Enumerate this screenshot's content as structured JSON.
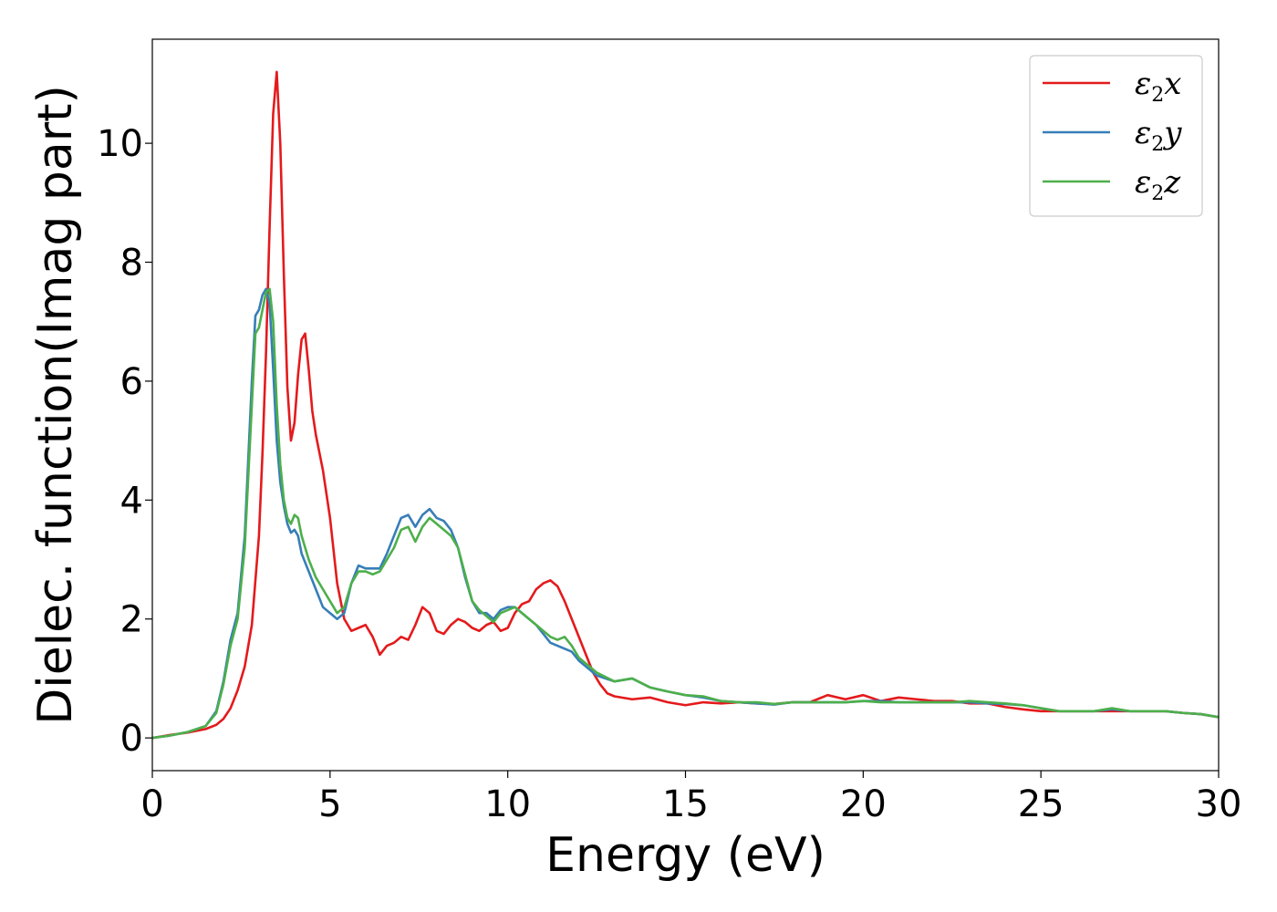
{
  "chart_data": {
    "type": "line",
    "title": "",
    "xlabel": "Energy (eV)",
    "ylabel": "Dielec. function(Imag part)",
    "xlim": [
      0,
      30
    ],
    "ylim": [
      -0.55,
      11.75
    ],
    "xticks": [
      0,
      5,
      10,
      15,
      20,
      25,
      30
    ],
    "yticks": [
      0,
      2,
      4,
      6,
      8,
      10
    ],
    "grid": false,
    "legend_position": "top-right",
    "series": [
      {
        "name": "ε₂x",
        "legend_main": "ε",
        "legend_sub": "2",
        "legend_tail": "x",
        "color": "#e41a1c",
        "x": [
          0,
          0.5,
          1.0,
          1.5,
          1.8,
          2.0,
          2.2,
          2.4,
          2.6,
          2.8,
          3.0,
          3.1,
          3.2,
          3.3,
          3.4,
          3.5,
          3.6,
          3.7,
          3.8,
          3.9,
          4.0,
          4.1,
          4.2,
          4.3,
          4.4,
          4.5,
          4.6,
          4.8,
          5.0,
          5.2,
          5.4,
          5.6,
          5.8,
          6.0,
          6.2,
          6.4,
          6.6,
          6.8,
          7.0,
          7.2,
          7.4,
          7.6,
          7.8,
          8.0,
          8.2,
          8.4,
          8.6,
          8.8,
          9.0,
          9.2,
          9.4,
          9.6,
          9.8,
          10.0,
          10.2,
          10.4,
          10.6,
          10.8,
          11.0,
          11.2,
          11.4,
          11.6,
          11.8,
          12.0,
          12.2,
          12.4,
          12.6,
          12.8,
          13.0,
          13.5,
          14.0,
          14.5,
          15.0,
          15.5,
          16.0,
          16.5,
          17.0,
          17.5,
          18.0,
          18.5,
          19.0,
          19.5,
          20.0,
          20.5,
          21.0,
          21.5,
          22.0,
          22.5,
          23.0,
          23.5,
          24.0,
          24.5,
          25.0,
          25.5,
          26.0,
          26.5,
          27.0,
          27.5,
          28.0,
          28.5,
          29.0,
          29.5,
          30.0
        ],
        "y": [
          0,
          0.05,
          0.09,
          0.15,
          0.22,
          0.32,
          0.5,
          0.8,
          1.2,
          1.9,
          3.4,
          4.8,
          6.5,
          8.6,
          10.5,
          11.2,
          10.0,
          7.8,
          5.9,
          5.0,
          5.3,
          6.1,
          6.7,
          6.8,
          6.2,
          5.5,
          5.1,
          4.5,
          3.7,
          2.6,
          2.0,
          1.8,
          1.85,
          1.9,
          1.7,
          1.4,
          1.55,
          1.6,
          1.7,
          1.65,
          1.9,
          2.2,
          2.1,
          1.8,
          1.75,
          1.9,
          2.0,
          1.95,
          1.85,
          1.8,
          1.9,
          1.95,
          1.8,
          1.85,
          2.1,
          2.25,
          2.3,
          2.5,
          2.6,
          2.65,
          2.55,
          2.3,
          2.0,
          1.7,
          1.4,
          1.1,
          0.9,
          0.75,
          0.7,
          0.65,
          0.68,
          0.6,
          0.55,
          0.6,
          0.58,
          0.6,
          0.58,
          0.57,
          0.6,
          0.6,
          0.72,
          0.65,
          0.72,
          0.62,
          0.68,
          0.65,
          0.62,
          0.62,
          0.58,
          0.58,
          0.52,
          0.48,
          0.45,
          0.45,
          0.45,
          0.45,
          0.45,
          0.45,
          0.45,
          0.45,
          0.42,
          0.4,
          0.35
        ]
      },
      {
        "name": "ε₂y",
        "legend_main": "ε",
        "legend_sub": "2",
        "legend_tail": "y",
        "color": "#377eb8",
        "x": [
          0,
          0.5,
          1.0,
          1.5,
          1.8,
          2.0,
          2.2,
          2.4,
          2.6,
          2.8,
          2.9,
          3.0,
          3.1,
          3.2,
          3.3,
          3.4,
          3.5,
          3.6,
          3.7,
          3.8,
          3.9,
          4.0,
          4.1,
          4.2,
          4.4,
          4.6,
          4.8,
          5.0,
          5.2,
          5.4,
          5.6,
          5.8,
          6.0,
          6.2,
          6.4,
          6.6,
          6.8,
          7.0,
          7.2,
          7.4,
          7.6,
          7.8,
          8.0,
          8.2,
          8.4,
          8.6,
          8.8,
          9.0,
          9.2,
          9.4,
          9.6,
          9.8,
          10.0,
          10.2,
          10.4,
          10.6,
          10.8,
          11.0,
          11.2,
          11.4,
          11.6,
          11.8,
          12.0,
          12.5,
          13.0,
          13.5,
          14.0,
          14.5,
          15.0,
          15.5,
          16.0,
          16.5,
          17.0,
          17.5,
          18.0,
          18.5,
          19.0,
          19.5,
          20.0,
          20.5,
          21.0,
          21.5,
          22.0,
          22.5,
          23.0,
          23.5,
          24.0,
          24.5,
          25.0,
          25.5,
          26.0,
          26.5,
          27.0,
          27.5,
          28.0,
          28.5,
          29.0,
          29.5,
          30.0
        ],
        "y": [
          0,
          0.04,
          0.1,
          0.2,
          0.45,
          0.95,
          1.65,
          2.1,
          3.4,
          6.0,
          7.1,
          7.2,
          7.45,
          7.55,
          7.3,
          6.2,
          5.0,
          4.3,
          3.9,
          3.6,
          3.45,
          3.5,
          3.4,
          3.1,
          2.8,
          2.5,
          2.2,
          2.1,
          2.0,
          2.1,
          2.6,
          2.9,
          2.85,
          2.85,
          2.85,
          3.1,
          3.4,
          3.7,
          3.75,
          3.55,
          3.75,
          3.85,
          3.7,
          3.65,
          3.5,
          3.2,
          2.7,
          2.3,
          2.1,
          2.1,
          2.0,
          2.15,
          2.2,
          2.2,
          2.1,
          2.0,
          1.9,
          1.75,
          1.6,
          1.55,
          1.5,
          1.45,
          1.3,
          1.05,
          0.95,
          1.0,
          0.85,
          0.78,
          0.72,
          0.68,
          0.62,
          0.6,
          0.58,
          0.56,
          0.6,
          0.6,
          0.6,
          0.6,
          0.62,
          0.62,
          0.6,
          0.6,
          0.6,
          0.6,
          0.6,
          0.58,
          0.57,
          0.55,
          0.5,
          0.45,
          0.45,
          0.45,
          0.48,
          0.45,
          0.45,
          0.45,
          0.42,
          0.4,
          0.35
        ]
      },
      {
        "name": "ε₂z",
        "legend_main": "ε",
        "legend_sub": "2",
        "legend_tail": "z",
        "color": "#4daf4a",
        "x": [
          0,
          0.5,
          1.0,
          1.5,
          1.8,
          2.0,
          2.2,
          2.4,
          2.6,
          2.8,
          2.9,
          3.0,
          3.1,
          3.2,
          3.3,
          3.4,
          3.5,
          3.6,
          3.7,
          3.8,
          3.9,
          4.0,
          4.1,
          4.2,
          4.4,
          4.6,
          4.8,
          5.0,
          5.2,
          5.4,
          5.6,
          5.8,
          6.0,
          6.2,
          6.4,
          6.6,
          6.8,
          7.0,
          7.2,
          7.4,
          7.6,
          7.8,
          8.0,
          8.2,
          8.4,
          8.6,
          8.8,
          9.0,
          9.2,
          9.4,
          9.6,
          9.8,
          10.0,
          10.2,
          10.4,
          10.6,
          10.8,
          11.0,
          11.2,
          11.4,
          11.6,
          11.8,
          12.0,
          12.5,
          13.0,
          13.5,
          14.0,
          14.5,
          15.0,
          15.5,
          16.0,
          16.5,
          17.0,
          17.5,
          18.0,
          18.5,
          19.0,
          19.5,
          20.0,
          20.5,
          21.0,
          21.5,
          22.0,
          22.5,
          23.0,
          23.5,
          24.0,
          24.5,
          25.0,
          25.5,
          26.0,
          26.5,
          27.0,
          27.5,
          28.0,
          28.5,
          29.0,
          29.5,
          30.0
        ],
        "y": [
          0,
          0.04,
          0.1,
          0.2,
          0.42,
          0.9,
          1.55,
          2.0,
          3.2,
          5.6,
          6.8,
          6.9,
          7.2,
          7.5,
          7.55,
          7.0,
          5.6,
          4.6,
          4.0,
          3.7,
          3.6,
          3.75,
          3.7,
          3.4,
          3.0,
          2.7,
          2.5,
          2.3,
          2.1,
          2.2,
          2.6,
          2.8,
          2.8,
          2.75,
          2.8,
          3.0,
          3.2,
          3.5,
          3.55,
          3.3,
          3.55,
          3.7,
          3.6,
          3.5,
          3.4,
          3.2,
          2.75,
          2.3,
          2.15,
          2.05,
          1.95,
          2.1,
          2.15,
          2.2,
          2.1,
          2.0,
          1.9,
          1.8,
          1.7,
          1.65,
          1.7,
          1.55,
          1.35,
          1.1,
          0.95,
          1.0,
          0.85,
          0.78,
          0.72,
          0.7,
          0.62,
          0.6,
          0.6,
          0.57,
          0.6,
          0.6,
          0.6,
          0.6,
          0.62,
          0.6,
          0.6,
          0.6,
          0.6,
          0.6,
          0.62,
          0.6,
          0.58,
          0.55,
          0.5,
          0.45,
          0.45,
          0.45,
          0.5,
          0.45,
          0.45,
          0.45,
          0.42,
          0.4,
          0.35
        ]
      }
    ]
  }
}
